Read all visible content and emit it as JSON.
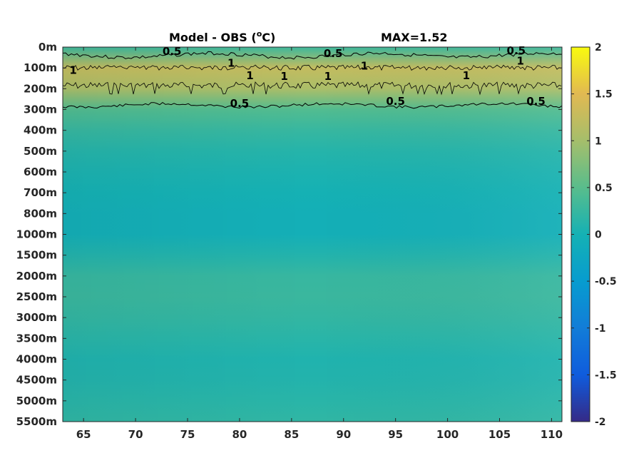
{
  "chart_data": {
    "type": "heatmap",
    "title": "Model - OBS (",
    "title_unit_sup": "o",
    "title_unit_after": "C)",
    "annotation": "MAX=1.52",
    "x_ticks": [
      "65",
      "70",
      "75",
      "80",
      "85",
      "90",
      "95",
      "100",
      "105",
      "110"
    ],
    "x_tick_values": [
      65,
      70,
      75,
      80,
      85,
      90,
      95,
      100,
      105,
      110
    ],
    "xlim": [
      63,
      111
    ],
    "y_ticks": [
      "0m",
      "100m",
      "200m",
      "300m",
      "400m",
      "500m",
      "600m",
      "700m",
      "800m",
      "1000m",
      "1500m",
      "2000m",
      "2500m",
      "3000m",
      "3500m",
      "4000m",
      "4500m",
      "5000m",
      "5500m"
    ],
    "colorbar": {
      "range": [
        -2,
        2
      ],
      "ticks": [
        "2",
        "1.5",
        "1",
        "0.5",
        "0",
        "-0.5",
        "-1",
        "-1.5",
        "-2"
      ],
      "colormap": "parula"
    },
    "depth_profile": [
      {
        "depth": "0m",
        "value": 0.3
      },
      {
        "depth": "100m",
        "value": 1.25
      },
      {
        "depth": "200m",
        "value": 1.05
      },
      {
        "depth": "300m",
        "value": 0.45
      },
      {
        "depth": "400m",
        "value": 0.25
      },
      {
        "depth": "500m",
        "value": 0.12
      },
      {
        "depth": "600m",
        "value": 0.05
      },
      {
        "depth": "700m",
        "value": 0.0
      },
      {
        "depth": "800m",
        "value": -0.05
      },
      {
        "depth": "1000m",
        "value": -0.05
      },
      {
        "depth": "1500m",
        "value": 0.1
      },
      {
        "depth": "2000m",
        "value": 0.25
      },
      {
        "depth": "2500m",
        "value": 0.27
      },
      {
        "depth": "3000m",
        "value": 0.22
      },
      {
        "depth": "3500m",
        "value": 0.15
      },
      {
        "depth": "4000m",
        "value": 0.08
      },
      {
        "depth": "4500m",
        "value": 0.1
      },
      {
        "depth": "5000m",
        "value": 0.15
      },
      {
        "depth": "5500m",
        "value": 0.2
      }
    ],
    "contour_labels": [
      {
        "text": "0.5",
        "x": 73.5,
        "depth_index": 0.35
      },
      {
        "text": "0.5",
        "x": 89.0,
        "depth_index": 0.45
      },
      {
        "text": "0.5",
        "x": 106.6,
        "depth_index": 0.3
      },
      {
        "text": "1",
        "x": 64.0,
        "depth_index": 1.25
      },
      {
        "text": "1",
        "x": 79.2,
        "depth_index": 0.9
      },
      {
        "text": "1",
        "x": 81.0,
        "depth_index": 1.5
      },
      {
        "text": "1",
        "x": 84.3,
        "depth_index": 1.55
      },
      {
        "text": "1",
        "x": 88.5,
        "depth_index": 1.55
      },
      {
        "text": "1",
        "x": 92.0,
        "depth_index": 1.05
      },
      {
        "text": "1",
        "x": 101.8,
        "depth_index": 1.5
      },
      {
        "text": "1",
        "x": 107.0,
        "depth_index": 0.8
      },
      {
        "text": "0.5",
        "x": 80.0,
        "depth_index": 2.85
      },
      {
        "text": "0.5",
        "x": 95.0,
        "depth_index": 2.75
      },
      {
        "text": "0.5",
        "x": 108.5,
        "depth_index": 2.75
      }
    ]
  }
}
